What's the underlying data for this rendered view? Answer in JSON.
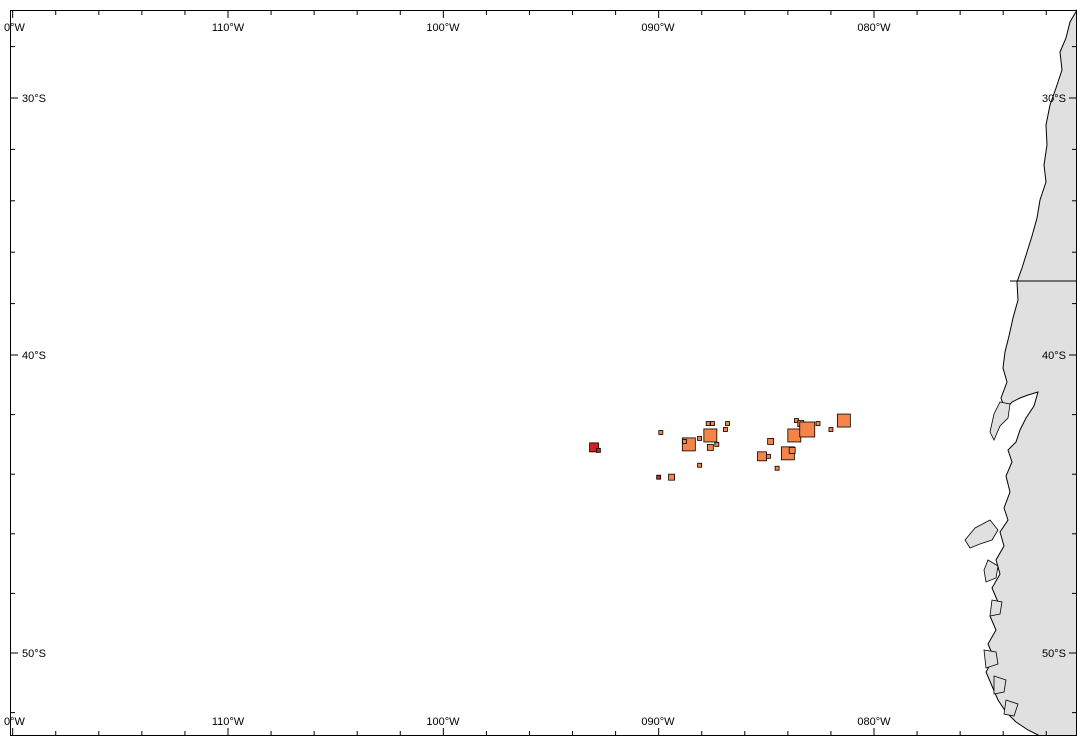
{
  "map": {
    "longitude_labels": [
      "0°W",
      "110°W",
      "100°W",
      "090°W",
      "080°W"
    ],
    "latitude_labels": [
      "30°S",
      "40°S",
      "50°S"
    ],
    "colors": {
      "land": "#e0e0e0",
      "coast": "#000000",
      "ocean": "#ffffff",
      "marker_orange": "#f5844a",
      "marker_red": "#d81e1e",
      "marker_outline": "#000000"
    },
    "markers": [
      {
        "lon": -93.0,
        "lat": -43.1,
        "size": "medium",
        "color": "red"
      },
      {
        "lon": -92.8,
        "lat": -43.2,
        "size": "tiny",
        "color": "red"
      },
      {
        "lon": -90.0,
        "lat": -44.1,
        "size": "tiny",
        "color": "red"
      },
      {
        "lon": -89.9,
        "lat": -42.6,
        "size": "tiny",
        "color": "orange"
      },
      {
        "lon": -89.4,
        "lat": -44.1,
        "size": "small",
        "color": "orange"
      },
      {
        "lon": -88.6,
        "lat": -43.0,
        "size": "large",
        "color": "orange"
      },
      {
        "lon": -88.8,
        "lat": -42.9,
        "size": "tiny",
        "color": "orange"
      },
      {
        "lon": -88.1,
        "lat": -42.8,
        "size": "tiny",
        "color": "orange"
      },
      {
        "lon": -88.1,
        "lat": -43.7,
        "size": "tiny",
        "color": "orange"
      },
      {
        "lon": -87.6,
        "lat": -42.7,
        "size": "large",
        "color": "orange"
      },
      {
        "lon": -87.6,
        "lat": -43.1,
        "size": "small",
        "color": "orange"
      },
      {
        "lon": -87.7,
        "lat": -42.3,
        "size": "tiny",
        "color": "orange"
      },
      {
        "lon": -87.5,
        "lat": -42.3,
        "size": "tiny",
        "color": "orange"
      },
      {
        "lon": -87.3,
        "lat": -43.0,
        "size": "tiny",
        "color": "orange"
      },
      {
        "lon": -86.9,
        "lat": -42.5,
        "size": "tiny",
        "color": "orange"
      },
      {
        "lon": -86.8,
        "lat": -42.3,
        "size": "tiny",
        "color": "orange"
      },
      {
        "lon": -85.2,
        "lat": -43.4,
        "size": "medium",
        "color": "orange"
      },
      {
        "lon": -84.8,
        "lat": -42.9,
        "size": "small",
        "color": "orange"
      },
      {
        "lon": -84.9,
        "lat": -43.4,
        "size": "tiny",
        "color": "orange"
      },
      {
        "lon": -84.5,
        "lat": -43.8,
        "size": "tiny",
        "color": "orange"
      },
      {
        "lon": -84.0,
        "lat": -43.3,
        "size": "large",
        "color": "orange"
      },
      {
        "lon": -83.8,
        "lat": -43.2,
        "size": "small",
        "color": "orange"
      },
      {
        "lon": -83.7,
        "lat": -42.7,
        "size": "large",
        "color": "orange"
      },
      {
        "lon": -83.6,
        "lat": -42.2,
        "size": "tiny",
        "color": "orange"
      },
      {
        "lon": -83.4,
        "lat": -42.3,
        "size": "small",
        "color": "orange"
      },
      {
        "lon": -83.1,
        "lat": -42.5,
        "size": "xlarge",
        "color": "orange"
      },
      {
        "lon": -82.6,
        "lat": -42.3,
        "size": "tiny",
        "color": "orange"
      },
      {
        "lon": -82.0,
        "lat": -42.5,
        "size": "tiny",
        "color": "orange"
      },
      {
        "lon": -81.4,
        "lat": -42.2,
        "size": "large",
        "color": "orange"
      }
    ]
  }
}
